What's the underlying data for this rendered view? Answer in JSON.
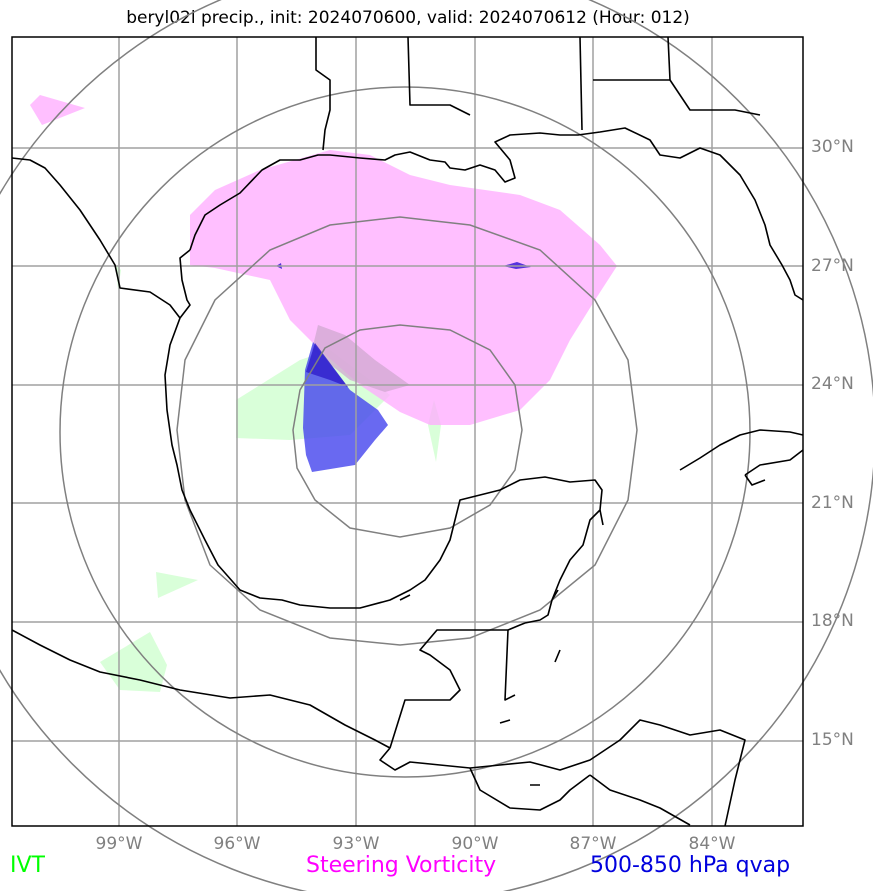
{
  "title": "beryl02l precip., init: 2024070600, valid: 2024070612 (Hour: 012)",
  "lat_labels": [
    "30°N",
    "27°N",
    "24°N",
    "21°N",
    "18°N",
    "15°N"
  ],
  "lon_labels": [
    "99°W",
    "96°W",
    "93°W",
    "90°W",
    "87°W",
    "84°W"
  ],
  "legend": {
    "ivt": {
      "label": "IVT",
      "color": "#00ff00"
    },
    "steering": {
      "label": "Steering Vorticity",
      "color": "#ff00ff"
    },
    "qvap": {
      "label": "500-850 hPa qvap",
      "color": "#0000dd"
    }
  },
  "colors": {
    "grid": "#a0a0a0",
    "range_rings": "#808080",
    "coastline": "#000000",
    "ivt_fill": "#ccffcc",
    "vorticity_fill": "#ffaaff",
    "qvap_fill": "#4444ee"
  },
  "map_extent": {
    "lon_min": -101.7,
    "lon_max": -81.7,
    "lat_min": 12.8,
    "lat_max": 32.8
  }
}
